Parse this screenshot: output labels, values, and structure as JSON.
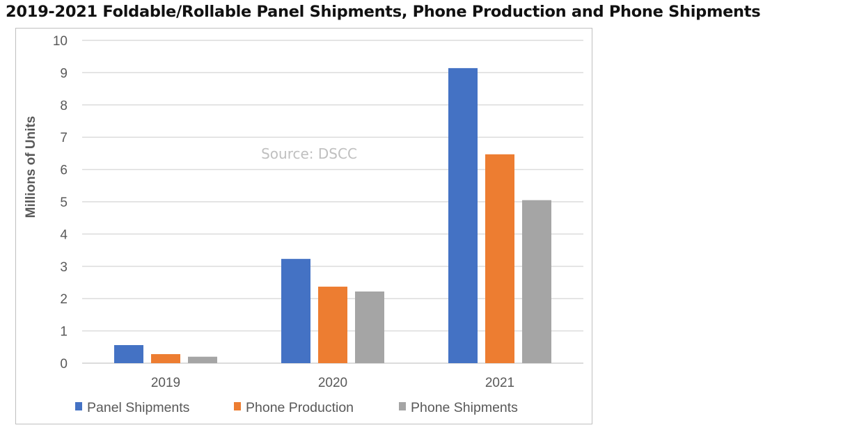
{
  "chart_data": {
    "type": "bar",
    "title": "2019-2021 Foldable/Rollable Panel Shipments, Phone Production and Phone Shipments",
    "xlabel": "",
    "ylabel": "Millions of Units",
    "ylim": [
      0,
      10
    ],
    "yticks": [
      "0",
      "1",
      "2",
      "3",
      "4",
      "5",
      "6",
      "7",
      "8",
      "9",
      "10"
    ],
    "categories": [
      "2019",
      "2020",
      "2021"
    ],
    "series": [
      {
        "name": "Panel Shipments",
        "color": "#4472c4",
        "values": [
          0.56,
          3.23,
          9.14
        ]
      },
      {
        "name": "Phone Production",
        "color": "#ed7d31",
        "values": [
          0.28,
          2.37,
          6.47
        ]
      },
      {
        "name": "Phone Shipments",
        "color": "#a5a5a5",
        "values": [
          0.2,
          2.22,
          5.05
        ]
      }
    ],
    "annotation": "Source: DSCC",
    "grid": true,
    "legend_position": "bottom"
  }
}
